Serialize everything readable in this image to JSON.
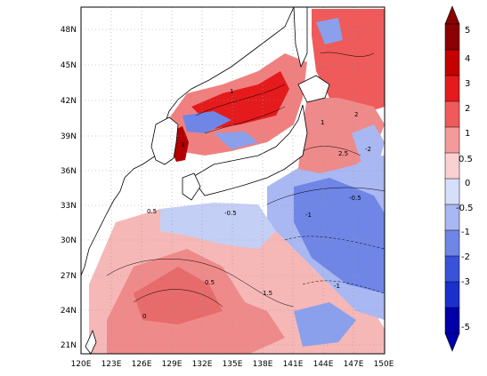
{
  "map": {
    "lat_labels": [
      "48N",
      "45N",
      "42N",
      "39N",
      "36N",
      "33N",
      "30N",
      "27N",
      "24N",
      "21N"
    ],
    "lon_labels": [
      "120E",
      "123E",
      "126E",
      "129E",
      "132E",
      "135E",
      "138E",
      "141E",
      "144E",
      "147E",
      "150E"
    ],
    "contour_labels": [
      {
        "text": "0.5"
      },
      {
        "text": "1"
      },
      {
        "text": "-0.5"
      },
      {
        "text": "-1"
      },
      {
        "text": "0"
      },
      {
        "text": "2"
      },
      {
        "text": "-2"
      },
      {
        "text": "1.5"
      },
      {
        "text": "3"
      },
      {
        "text": "2.5"
      }
    ]
  },
  "colorbar": {
    "labels": [
      "5",
      "4",
      "3",
      "2",
      "1",
      "0.5",
      "0",
      "-0.5",
      "-1",
      "-2",
      "-3",
      "-5"
    ],
    "colors": [
      "#8b0000",
      "#c40000",
      "#e41a1c",
      "#ef5a5a",
      "#f59a9a",
      "#fbd0d0",
      "#d6defa",
      "#a9b8f2",
      "#6f86e6",
      "#3a52d8",
      "#1a2fcc",
      "#0000a8"
    ]
  }
}
